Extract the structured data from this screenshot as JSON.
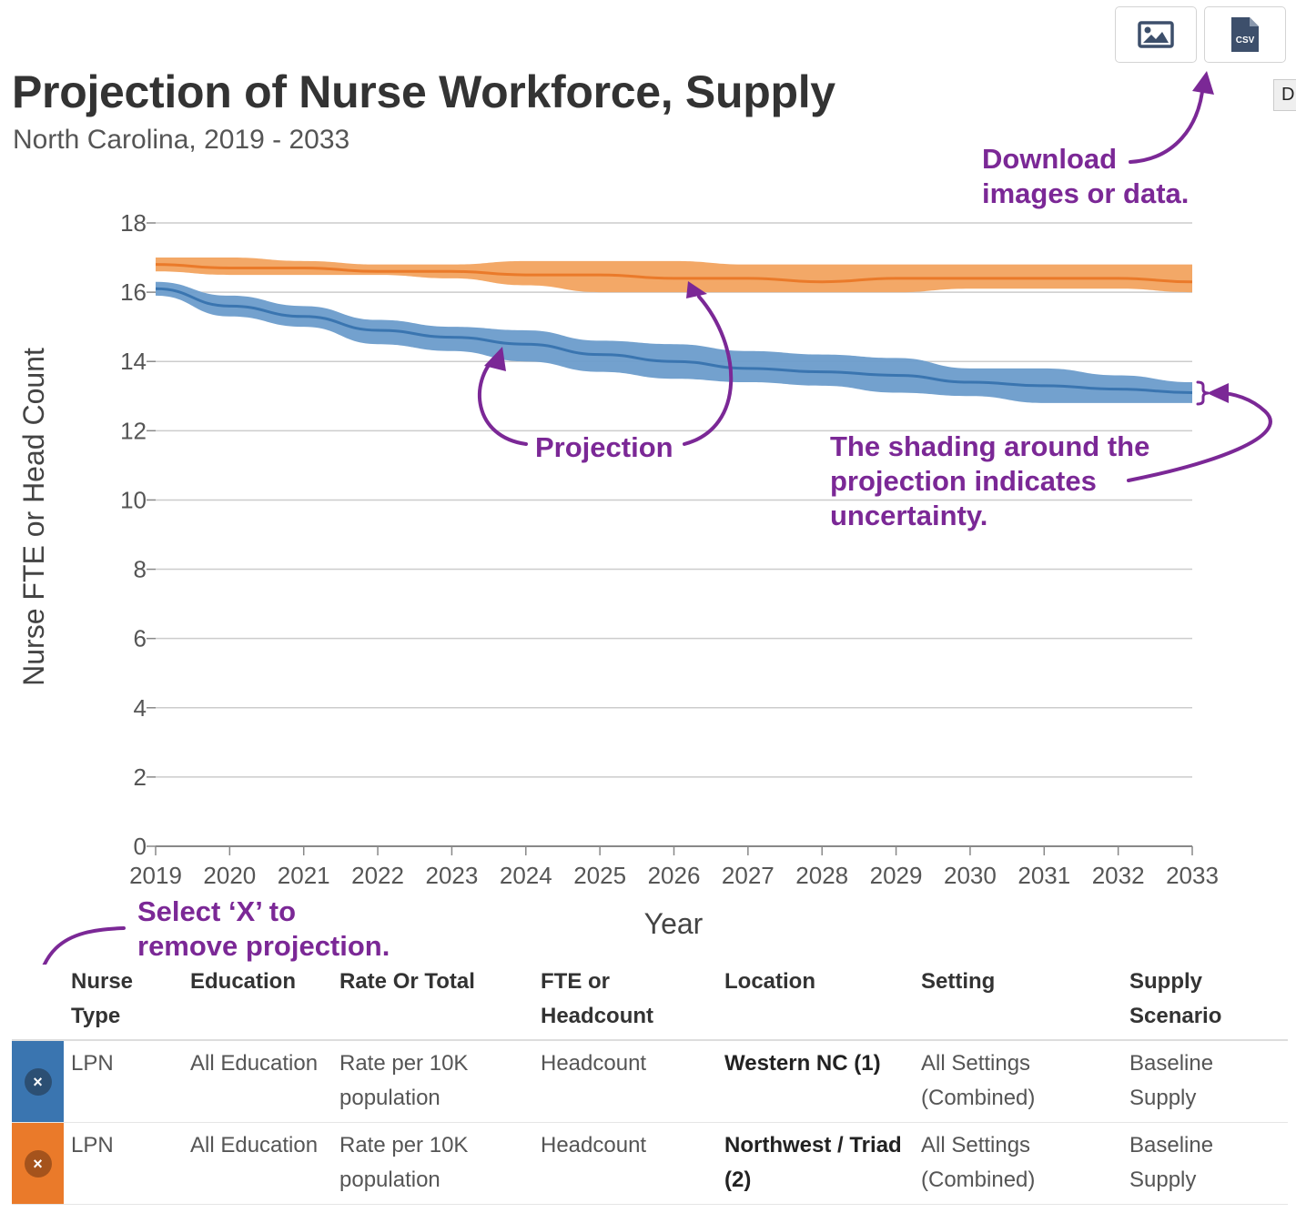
{
  "header": {
    "title": "Projection of Nurse Workforce, Supply",
    "subtitle": "North Carolina, 2019 - 2033"
  },
  "toolbar": {
    "download_image_icon": "image-icon",
    "download_csv_icon": "csv-file-icon",
    "csv_text": "CSV",
    "edge_tab_text": "D"
  },
  "annotations": {
    "download_line1": "Download",
    "download_line2": "images or data.",
    "projection": "Projection",
    "shading_line1": "The shading around the",
    "shading_line2": "projection indicates",
    "shading_line3": "uncertainty.",
    "remove_line1": "Select ‘X’ to",
    "remove_line2": "remove projection.",
    "color": "#7b2896"
  },
  "chart_data": {
    "type": "line",
    "xlabel": "Year",
    "ylabel": "Nurse FTE or Head Count",
    "x": [
      2019,
      2020,
      2021,
      2022,
      2023,
      2024,
      2025,
      2026,
      2027,
      2028,
      2029,
      2030,
      2031,
      2032,
      2033
    ],
    "ylim": [
      0,
      18
    ],
    "yticks": [
      0,
      2,
      4,
      6,
      8,
      10,
      12,
      14,
      16,
      18
    ],
    "grid": true,
    "series": [
      {
        "color": "#3a75b0",
        "band_color": "#6b9ccb",
        "values": [
          16.1,
          15.6,
          15.3,
          14.9,
          14.7,
          14.5,
          14.2,
          14.0,
          13.8,
          13.7,
          13.6,
          13.4,
          13.3,
          13.2,
          13.1
        ],
        "upper": [
          16.3,
          15.9,
          15.6,
          15.2,
          15.0,
          14.9,
          14.6,
          14.5,
          14.3,
          14.2,
          14.1,
          13.8,
          13.8,
          13.6,
          13.4
        ],
        "lower": [
          15.9,
          15.3,
          15.0,
          14.5,
          14.3,
          14.0,
          13.7,
          13.5,
          13.4,
          13.3,
          13.1,
          13.0,
          12.8,
          12.8,
          12.8
        ]
      },
      {
        "color": "#ea7a2a",
        "band_color": "#f2a35f",
        "values": [
          16.8,
          16.7,
          16.7,
          16.6,
          16.6,
          16.5,
          16.5,
          16.4,
          16.4,
          16.3,
          16.4,
          16.4,
          16.4,
          16.4,
          16.3
        ],
        "upper": [
          17.0,
          17.0,
          16.9,
          16.8,
          16.8,
          16.9,
          16.9,
          16.9,
          16.8,
          16.8,
          16.8,
          16.8,
          16.8,
          16.8,
          16.8
        ],
        "lower": [
          16.6,
          16.5,
          16.5,
          16.5,
          16.4,
          16.2,
          16.0,
          16.0,
          16.0,
          16.0,
          16.0,
          16.1,
          16.1,
          16.1,
          16.0
        ]
      }
    ]
  },
  "legend": {
    "headers": [
      "Nurse Type",
      "Education",
      "Rate Or Total",
      "FTE or Headcount",
      "Location",
      "Setting",
      "Supply Scenario"
    ],
    "remove_icon": "close-icon",
    "remove_glyph": "×",
    "rows": [
      {
        "color": "#3a75b0",
        "nurse_type": "LPN",
        "education": "All Education",
        "rate": "Rate per 10K population",
        "fte": "Headcount",
        "location": "Western NC (1)",
        "setting": "All Settings (Combined)",
        "scenario": "Baseline Supply"
      },
      {
        "color": "#ea7a2a",
        "nurse_type": "LPN",
        "education": "All Education",
        "rate": "Rate per 10K population",
        "fte": "Headcount",
        "location": "Northwest / Triad (2)",
        "setting": "All Settings (Combined)",
        "scenario": "Baseline Supply"
      }
    ]
  }
}
